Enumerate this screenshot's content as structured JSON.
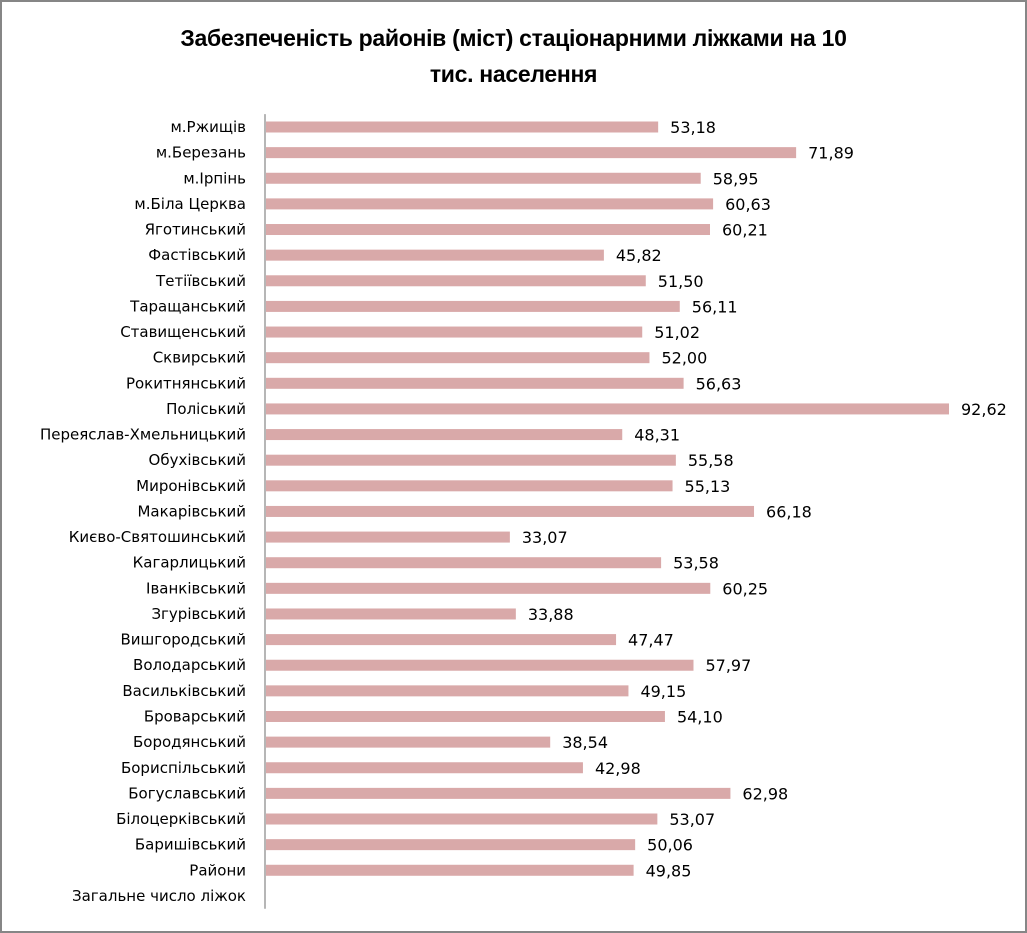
{
  "chart_data": {
    "type": "bar",
    "orientation": "horizontal",
    "title": "Забезпеченість районів (міст) стаціонарними ліжками на 10 тис. населення",
    "title_lines": [
      "Забезпеченість районів (міст) стаціонарними ліжками на 10",
      "тис. населення"
    ],
    "xlabel": "",
    "ylabel": "",
    "xlim": [
      0,
      92.62
    ],
    "grid": false,
    "legend": "none",
    "bar_color": "#d9a9a9",
    "categories": [
      "м.Ржищів",
      "м.Березань",
      "м.Ірпінь",
      "м.Біла Церква",
      "Яготинський",
      "Фастівський",
      "Тетіївський",
      "Таращанський",
      "Ставищенський",
      "Сквирський",
      "Рокитнянський",
      "Поліський",
      "Переяслав-Хмельницький",
      "Обухівський",
      "Миронівський",
      "Макарівський",
      "Києво-Святошинський",
      "Кагарлицький",
      "Іванківський",
      "Згурівський",
      "Вишгородський",
      "Володарський",
      "Васильківський",
      "Броварський",
      "Бородянський",
      "Бориспільський",
      "Богуславський",
      "Білоцерківський",
      "Баришівський",
      "Райони",
      "Загальне число ліжок"
    ],
    "values": [
      53.18,
      71.89,
      58.95,
      60.63,
      60.21,
      45.82,
      51.5,
      56.11,
      51.02,
      52.0,
      56.63,
      92.62,
      48.31,
      55.58,
      55.13,
      66.18,
      33.07,
      53.58,
      60.25,
      33.88,
      47.47,
      57.97,
      49.15,
      54.1,
      38.54,
      42.98,
      62.98,
      53.07,
      50.06,
      49.85,
      null
    ],
    "value_labels": [
      "53,18",
      "71,89",
      "58,95",
      "60,63",
      "60,21",
      "45,82",
      "51,50",
      "56,11",
      "51,02",
      "52,00",
      "56,63",
      "92,62",
      "48,31",
      "55,58",
      "55,13",
      "66,18",
      "33,07",
      "53,58",
      "60,25",
      "33,88",
      "47,47",
      "57,97",
      "49,15",
      "54,10",
      "38,54",
      "42,98",
      "62,98",
      "53,07",
      "50,06",
      "49,85",
      ""
    ]
  }
}
